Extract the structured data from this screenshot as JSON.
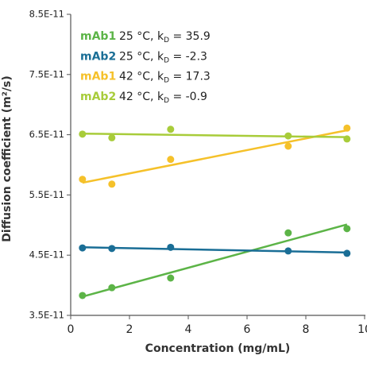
{
  "chart_data": {
    "type": "scatter",
    "x_label": "Concentration (mg/mL)",
    "y_label": "Diffusion coefficient (m²/s)",
    "x": [
      0.4,
      1.4,
      3.4,
      7.4,
      9.4
    ],
    "xlim": [
      0,
      10
    ],
    "xticks": [
      0,
      2,
      4,
      6,
      8,
      10
    ],
    "ylim": [
      3.5e-11,
      8.5e-11
    ],
    "yticks": [
      {
        "value": 3.5e-11,
        "label": "3.5E-11"
      },
      {
        "value": 4.5e-11,
        "label": "4.5E-11"
      },
      {
        "value": 5.5e-11,
        "label": "5.5E-11"
      },
      {
        "value": 6.5e-11,
        "label": "6.5E-11"
      },
      {
        "value": 7.5e-11,
        "label": "7.5E-11"
      },
      {
        "value": 8.5e-11,
        "label": "8.5E-11"
      }
    ],
    "fit_lines": true,
    "series": [
      {
        "name": "mAb1",
        "label_parts": [
          "25 °C, k",
          "D",
          " = 35.9"
        ],
        "color": "#5cb447",
        "values": [
          3.83e-11,
          3.96e-11,
          4.12e-11,
          4.87e-11,
          4.94e-11
        ]
      },
      {
        "name": "mAb2",
        "label_parts": [
          "25 °C, k",
          "D",
          " = -2.3"
        ],
        "color": "#1a6e96",
        "values": [
          4.62e-11,
          4.61e-11,
          4.63e-11,
          4.57e-11,
          4.53e-11
        ]
      },
      {
        "name": "mAb1",
        "label_parts": [
          "42 °C, k",
          "D",
          " = 17.3"
        ],
        "color": "#f5c12a",
        "values": [
          5.76e-11,
          5.68e-11,
          6.09e-11,
          6.31e-11,
          6.61e-11
        ]
      },
      {
        "name": "mAb2",
        "label_parts": [
          "42 °C, k",
          "D",
          " = -0.9"
        ],
        "color": "#a8cc3a",
        "values": [
          6.51e-11,
          6.45e-11,
          6.59e-11,
          6.48e-11,
          6.43e-11
        ]
      }
    ]
  }
}
